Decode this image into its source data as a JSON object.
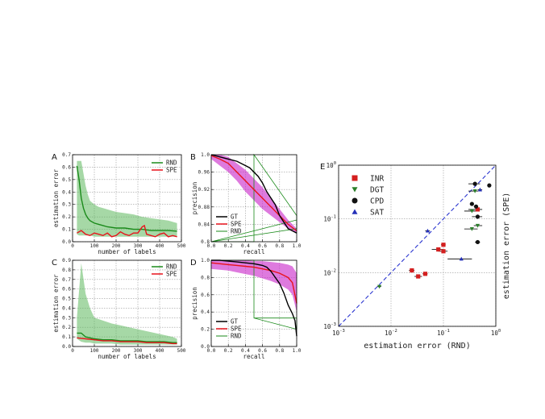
{
  "panel_letters": {
    "A": "A",
    "B": "B",
    "C": "C",
    "D": "D",
    "E": "E"
  },
  "chart_data": [
    {
      "panel": "A",
      "type": "line",
      "xlabel": "number of labels",
      "ylabel": "estimation error",
      "xlim": [
        0,
        500
      ],
      "ylim": [
        0.0,
        0.7
      ],
      "xticks": [
        0,
        100,
        200,
        300,
        400,
        500
      ],
      "yticks": [
        0.0,
        0.1,
        0.2,
        0.3,
        0.4,
        0.5,
        0.6,
        0.7
      ],
      "ytick_labels": [
        "0.0",
        "0.1",
        "0.2",
        "0.3",
        "0.4",
        "0.5",
        "0.6",
        "0.7"
      ],
      "grid": true,
      "legend_position": "top-right",
      "series": [
        {
          "name": "RND",
          "color": "#1a8a1a",
          "x": [
            20,
            30,
            40,
            50,
            60,
            70,
            80,
            100,
            120,
            140,
            160,
            200,
            240,
            280,
            320,
            360,
            400,
            440,
            480
          ],
          "y": [
            0.61,
            0.5,
            0.35,
            0.27,
            0.22,
            0.19,
            0.17,
            0.15,
            0.14,
            0.13,
            0.12,
            0.11,
            0.11,
            0.1,
            0.1,
            0.09,
            0.09,
            0.09,
            0.085
          ],
          "band_upper": [
            0.65,
            0.65,
            0.65,
            0.55,
            0.45,
            0.38,
            0.33,
            0.3,
            0.28,
            0.27,
            0.26,
            0.24,
            0.23,
            0.22,
            0.2,
            0.19,
            0.18,
            0.17,
            0.15
          ],
          "band_lower": [
            0.06,
            0.05,
            0.05,
            0.05,
            0.05,
            0.05,
            0.05,
            0.04,
            0.04,
            0.04,
            0.04,
            0.04,
            0.04,
            0.04,
            0.04,
            0.04,
            0.04,
            0.04,
            0.04
          ]
        },
        {
          "name": "SPE",
          "color": "#e8121c",
          "x": [
            20,
            40,
            60,
            80,
            100,
            120,
            140,
            160,
            180,
            200,
            220,
            240,
            260,
            280,
            300,
            320,
            330,
            340,
            360,
            380,
            400,
            420,
            440,
            460,
            480
          ],
          "y": [
            0.07,
            0.09,
            0.06,
            0.05,
            0.07,
            0.06,
            0.05,
            0.07,
            0.04,
            0.05,
            0.08,
            0.06,
            0.05,
            0.07,
            0.07,
            0.12,
            0.13,
            0.06,
            0.05,
            0.04,
            0.06,
            0.07,
            0.04,
            0.05,
            0.04
          ]
        }
      ]
    },
    {
      "panel": "C",
      "type": "line",
      "xlabel": "number of labels",
      "ylabel": "estimation error",
      "xlim": [
        0,
        500
      ],
      "ylim": [
        0.0,
        0.9
      ],
      "xticks": [
        0,
        100,
        200,
        300,
        400,
        500
      ],
      "yticks": [
        0.0,
        0.1,
        0.2,
        0.3,
        0.4,
        0.5,
        0.6,
        0.7,
        0.8,
        0.9
      ],
      "ytick_labels": [
        "0.0",
        "0.1",
        "0.2",
        "0.3",
        "0.4",
        "0.5",
        "0.6",
        "0.7",
        "0.8",
        "0.9"
      ],
      "grid": true,
      "legend_position": "top-right",
      "series": [
        {
          "name": "RND",
          "color": "#1a8a1a",
          "x": [
            20,
            40,
            60,
            80,
            100,
            140,
            180,
            220,
            260,
            300,
            340,
            380,
            420,
            460,
            480
          ],
          "y": [
            0.14,
            0.14,
            0.1,
            0.09,
            0.08,
            0.07,
            0.07,
            0.06,
            0.06,
            0.06,
            0.05,
            0.05,
            0.05,
            0.04,
            0.04
          ],
          "band_upper": [
            0.3,
            0.87,
            0.55,
            0.4,
            0.3,
            0.27,
            0.24,
            0.22,
            0.2,
            0.18,
            0.16,
            0.14,
            0.12,
            0.1,
            0.08
          ],
          "band_lower": [
            0.08,
            0.05,
            0.04,
            0.04,
            0.03,
            0.03,
            0.03,
            0.02,
            0.02,
            0.02,
            0.02,
            0.02,
            0.02,
            0.02,
            0.02
          ]
        },
        {
          "name": "SPE",
          "color": "#e8121c",
          "x": [
            20,
            60,
            100,
            140,
            180,
            220,
            260,
            300,
            340,
            380,
            420,
            460,
            480
          ],
          "y": [
            0.09,
            0.08,
            0.07,
            0.06,
            0.06,
            0.05,
            0.05,
            0.05,
            0.04,
            0.04,
            0.04,
            0.03,
            0.03
          ]
        }
      ]
    },
    {
      "panel": "B",
      "type": "line",
      "xlabel": "recall",
      "ylabel": "precision",
      "xlim": [
        0.0,
        1.0
      ],
      "ylim": [
        0.8,
        1.0
      ],
      "xticks": [
        0.0,
        0.2,
        0.4,
        0.6,
        0.8,
        1.0
      ],
      "yticks": [
        0.8,
        0.84,
        0.88,
        0.92,
        0.96,
        1.0
      ],
      "ytick_labels": [
        "0.8",
        "0.84",
        "0.88",
        "0.92",
        "0.96",
        "1.0"
      ],
      "grid": true,
      "legend_position": "bottom-left",
      "series": [
        {
          "name": "GT",
          "color": "#000000",
          "x": [
            0.0,
            0.1,
            0.2,
            0.3,
            0.4,
            0.45,
            0.5,
            0.55,
            0.6,
            0.65,
            0.7,
            0.75,
            0.8,
            0.85,
            0.9,
            0.95,
            1.0
          ],
          "y": [
            1.0,
            0.995,
            0.99,
            0.985,
            0.975,
            0.97,
            0.96,
            0.95,
            0.935,
            0.915,
            0.9,
            0.885,
            0.86,
            0.845,
            0.83,
            0.825,
            0.82
          ]
        },
        {
          "name": "SPE",
          "color": "#e8121c",
          "x": [
            0.0,
            0.1,
            0.2,
            0.3,
            0.4,
            0.5,
            0.6,
            0.7,
            0.8,
            0.9,
            1.0
          ],
          "y": [
            0.998,
            0.99,
            0.98,
            0.96,
            0.94,
            0.92,
            0.9,
            0.88,
            0.86,
            0.84,
            0.825
          ],
          "band_upper": [
            1.0,
            1.0,
            0.995,
            0.98,
            0.965,
            0.945,
            0.925,
            0.9,
            0.875,
            0.85,
            0.83
          ],
          "band_lower": [
            0.99,
            0.975,
            0.96,
            0.94,
            0.915,
            0.895,
            0.875,
            0.86,
            0.845,
            0.83,
            0.82
          ]
        },
        {
          "name": "RND",
          "color": "#1a8a1a",
          "x": [
            0.0,
            0.5,
            0.5,
            1.0,
            1.0,
            0.0,
            1.0
          ],
          "y": [
            0.8,
            0.8,
            1.0,
            0.86,
            0.83,
            0.8,
            0.85
          ]
        }
      ]
    },
    {
      "panel": "D",
      "type": "line",
      "xlabel": "recall",
      "ylabel": "precision",
      "xlim": [
        0.0,
        1.0
      ],
      "ylim": [
        0.0,
        1.0
      ],
      "xticks": [
        0.0,
        0.2,
        0.4,
        0.6,
        0.8,
        1.0
      ],
      "yticks": [
        0.0,
        0.2,
        0.4,
        0.6,
        0.8,
        1.0
      ],
      "ytick_labels": [
        "0.0",
        "0.2",
        "0.4",
        "0.6",
        "0.8",
        "1.0"
      ],
      "grid": true,
      "legend_position": "bottom-left",
      "series": [
        {
          "name": "GT",
          "color": "#000000",
          "x": [
            0.0,
            0.1,
            0.2,
            0.3,
            0.4,
            0.5,
            0.6,
            0.65,
            0.7,
            0.75,
            0.8,
            0.85,
            0.9,
            0.95,
            0.98,
            1.0
          ],
          "y": [
            1.0,
            1.0,
            0.99,
            0.98,
            0.97,
            0.96,
            0.94,
            0.92,
            0.87,
            0.8,
            0.73,
            0.62,
            0.48,
            0.38,
            0.3,
            0.12
          ]
        },
        {
          "name": "SPE",
          "color": "#e8121c",
          "x": [
            0.0,
            0.1,
            0.2,
            0.3,
            0.4,
            0.5,
            0.6,
            0.7,
            0.8,
            0.9,
            0.95,
            1.0
          ],
          "y": [
            0.97,
            0.96,
            0.95,
            0.94,
            0.93,
            0.92,
            0.9,
            0.88,
            0.85,
            0.8,
            0.74,
            0.5
          ],
          "band_upper": [
            1.0,
            1.0,
            1.0,
            1.0,
            1.0,
            0.99,
            0.99,
            0.98,
            0.97,
            0.95,
            0.93,
            0.85
          ],
          "band_lower": [
            0.9,
            0.89,
            0.88,
            0.86,
            0.84,
            0.82,
            0.79,
            0.76,
            0.72,
            0.66,
            0.6,
            0.4
          ]
        },
        {
          "name": "RND",
          "color": "#1a8a1a",
          "x": [
            0.0,
            0.5,
            0.5,
            1.0,
            1.0,
            0.5,
            0.5
          ],
          "y": [
            1.0,
            1.0,
            0.33,
            0.33,
            0.2,
            0.33,
            1.0
          ]
        }
      ]
    },
    {
      "panel": "E",
      "type": "scatter",
      "xscale": "log",
      "yscale": "log",
      "xlabel": "estimation error (RND)",
      "ylabel": "estimation error (SPE)",
      "xlim": [
        0.001,
        1
      ],
      "ylim": [
        0.001,
        1
      ],
      "xtick_labels": [
        "10",
        "10",
        "10",
        "10"
      ],
      "xtick_exponents": [
        "-3",
        "-2",
        "-1",
        "0"
      ],
      "grid": true,
      "legend_position": "top-left",
      "diagonal": {
        "color": "#2a35d0",
        "style": "dashed"
      },
      "series": [
        {
          "name": "INR",
          "marker": "square",
          "color": "#d41f1f",
          "points": [
            {
              "x": 0.025,
              "y": 0.011,
              "xerr": [
                0.022,
                0.028
              ]
            },
            {
              "x": 0.033,
              "y": 0.0085,
              "xerr": [
                0.028,
                0.039
              ]
            },
            {
              "x": 0.045,
              "y": 0.0095,
              "xerr": [
                0.04,
                0.05
              ]
            },
            {
              "x": 0.08,
              "y": 0.027,
              "xerr": [
                0.06,
                0.1
              ]
            },
            {
              "x": 0.1,
              "y": 0.025,
              "xerr": [
                0.08,
                0.12
              ]
            },
            {
              "x": 0.1,
              "y": 0.033,
              "xerr": [
                0.09,
                0.11
              ]
            },
            {
              "x": 0.45,
              "y": 0.15,
              "xerr": [
                0.3,
                0.55
              ]
            }
          ]
        },
        {
          "name": "DGT",
          "marker": "triangle-down",
          "color": "#2a7f2a",
          "points": [
            {
              "x": 0.006,
              "y": 0.0055,
              "xerr": [
                0.0055,
                0.0065
              ]
            },
            {
              "x": 0.35,
              "y": 0.065,
              "xerr": [
                0.25,
                0.45
              ]
            },
            {
              "x": 0.45,
              "y": 0.075,
              "xerr": [
                0.38,
                0.55
              ]
            },
            {
              "x": 0.35,
              "y": 0.14,
              "xerr": [
                0.25,
                0.45
              ]
            },
            {
              "x": 0.4,
              "y": 0.33,
              "xerr": [
                0.3,
                0.5
              ]
            }
          ]
        },
        {
          "name": "CPD",
          "marker": "circle",
          "color": "#111111",
          "points": [
            {
              "x": 0.4,
              "y": 0.45,
              "xerr": [
                0.3,
                0.5
              ]
            },
            {
              "x": 0.35,
              "y": 0.19,
              "xerr": [
                0.32,
                0.38
              ]
            },
            {
              "x": 0.42,
              "y": 0.17,
              "xerr": [
                0.38,
                0.46
              ]
            },
            {
              "x": 0.45,
              "y": 0.11,
              "xerr": [
                0.35,
                0.55
              ]
            },
            {
              "x": 0.45,
              "y": 0.037,
              "xerr": [
                0.4,
                0.5
              ]
            },
            {
              "x": 0.75,
              "y": 0.42,
              "xerr": [
                0.7,
                0.8
              ]
            }
          ]
        },
        {
          "name": "SAT",
          "marker": "triangle-up",
          "color": "#2430b8",
          "points": [
            {
              "x": 0.05,
              "y": 0.06,
              "xerr": [
                0.045,
                0.055
              ]
            },
            {
              "x": 0.22,
              "y": 0.018,
              "xerr": [
                0.12,
                0.35
              ]
            },
            {
              "x": 0.5,
              "y": 0.35,
              "xerr": [
                0.45,
                0.55
              ]
            }
          ]
        }
      ]
    }
  ]
}
